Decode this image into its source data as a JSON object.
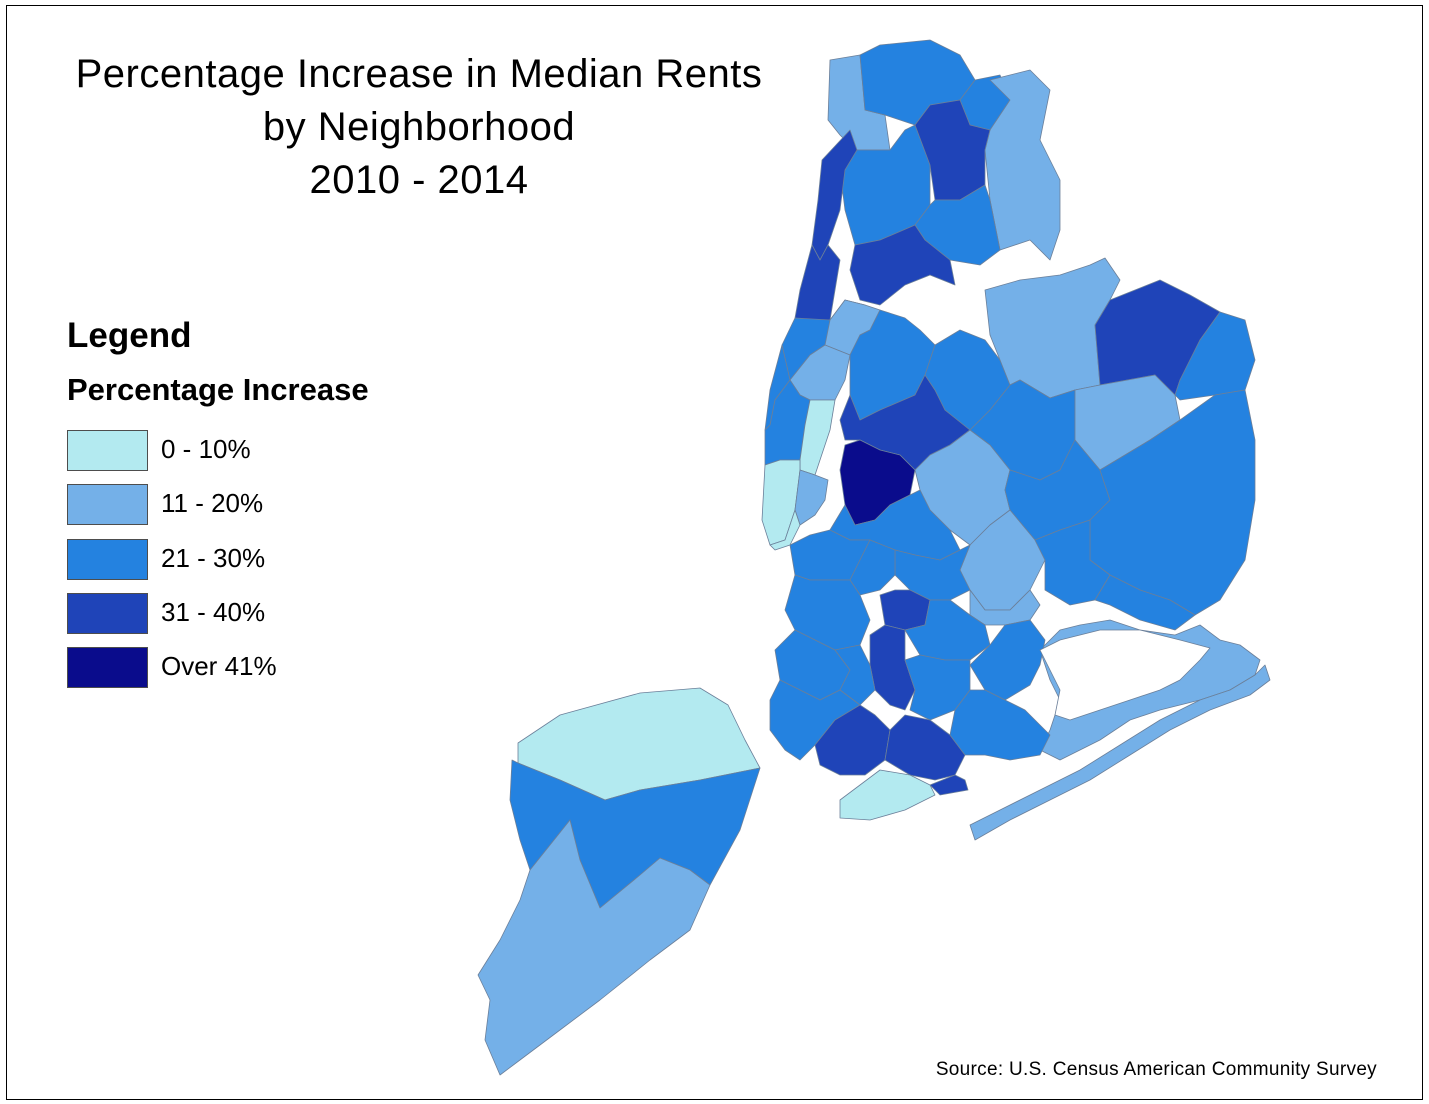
{
  "title": {
    "line1": "Percentage Increase in Median Rents",
    "line2": "by Neighborhood",
    "line3": "2010 - 2014"
  },
  "legend": {
    "heading": "Legend",
    "subheading": "Percentage Increase",
    "items": [
      {
        "label": "0 - 10%",
        "color": "#b3eaf0"
      },
      {
        "label": "11 - 20%",
        "color": "#74b0e8"
      },
      {
        "label": "21 - 30%",
        "color": "#2482e0"
      },
      {
        "label": "31 - 40%",
        "color": "#1f44b8"
      },
      {
        "label": "Over 41%",
        "color": "#0a0c8c"
      }
    ]
  },
  "source": "Source: U.S. Census American Community Survey"
}
